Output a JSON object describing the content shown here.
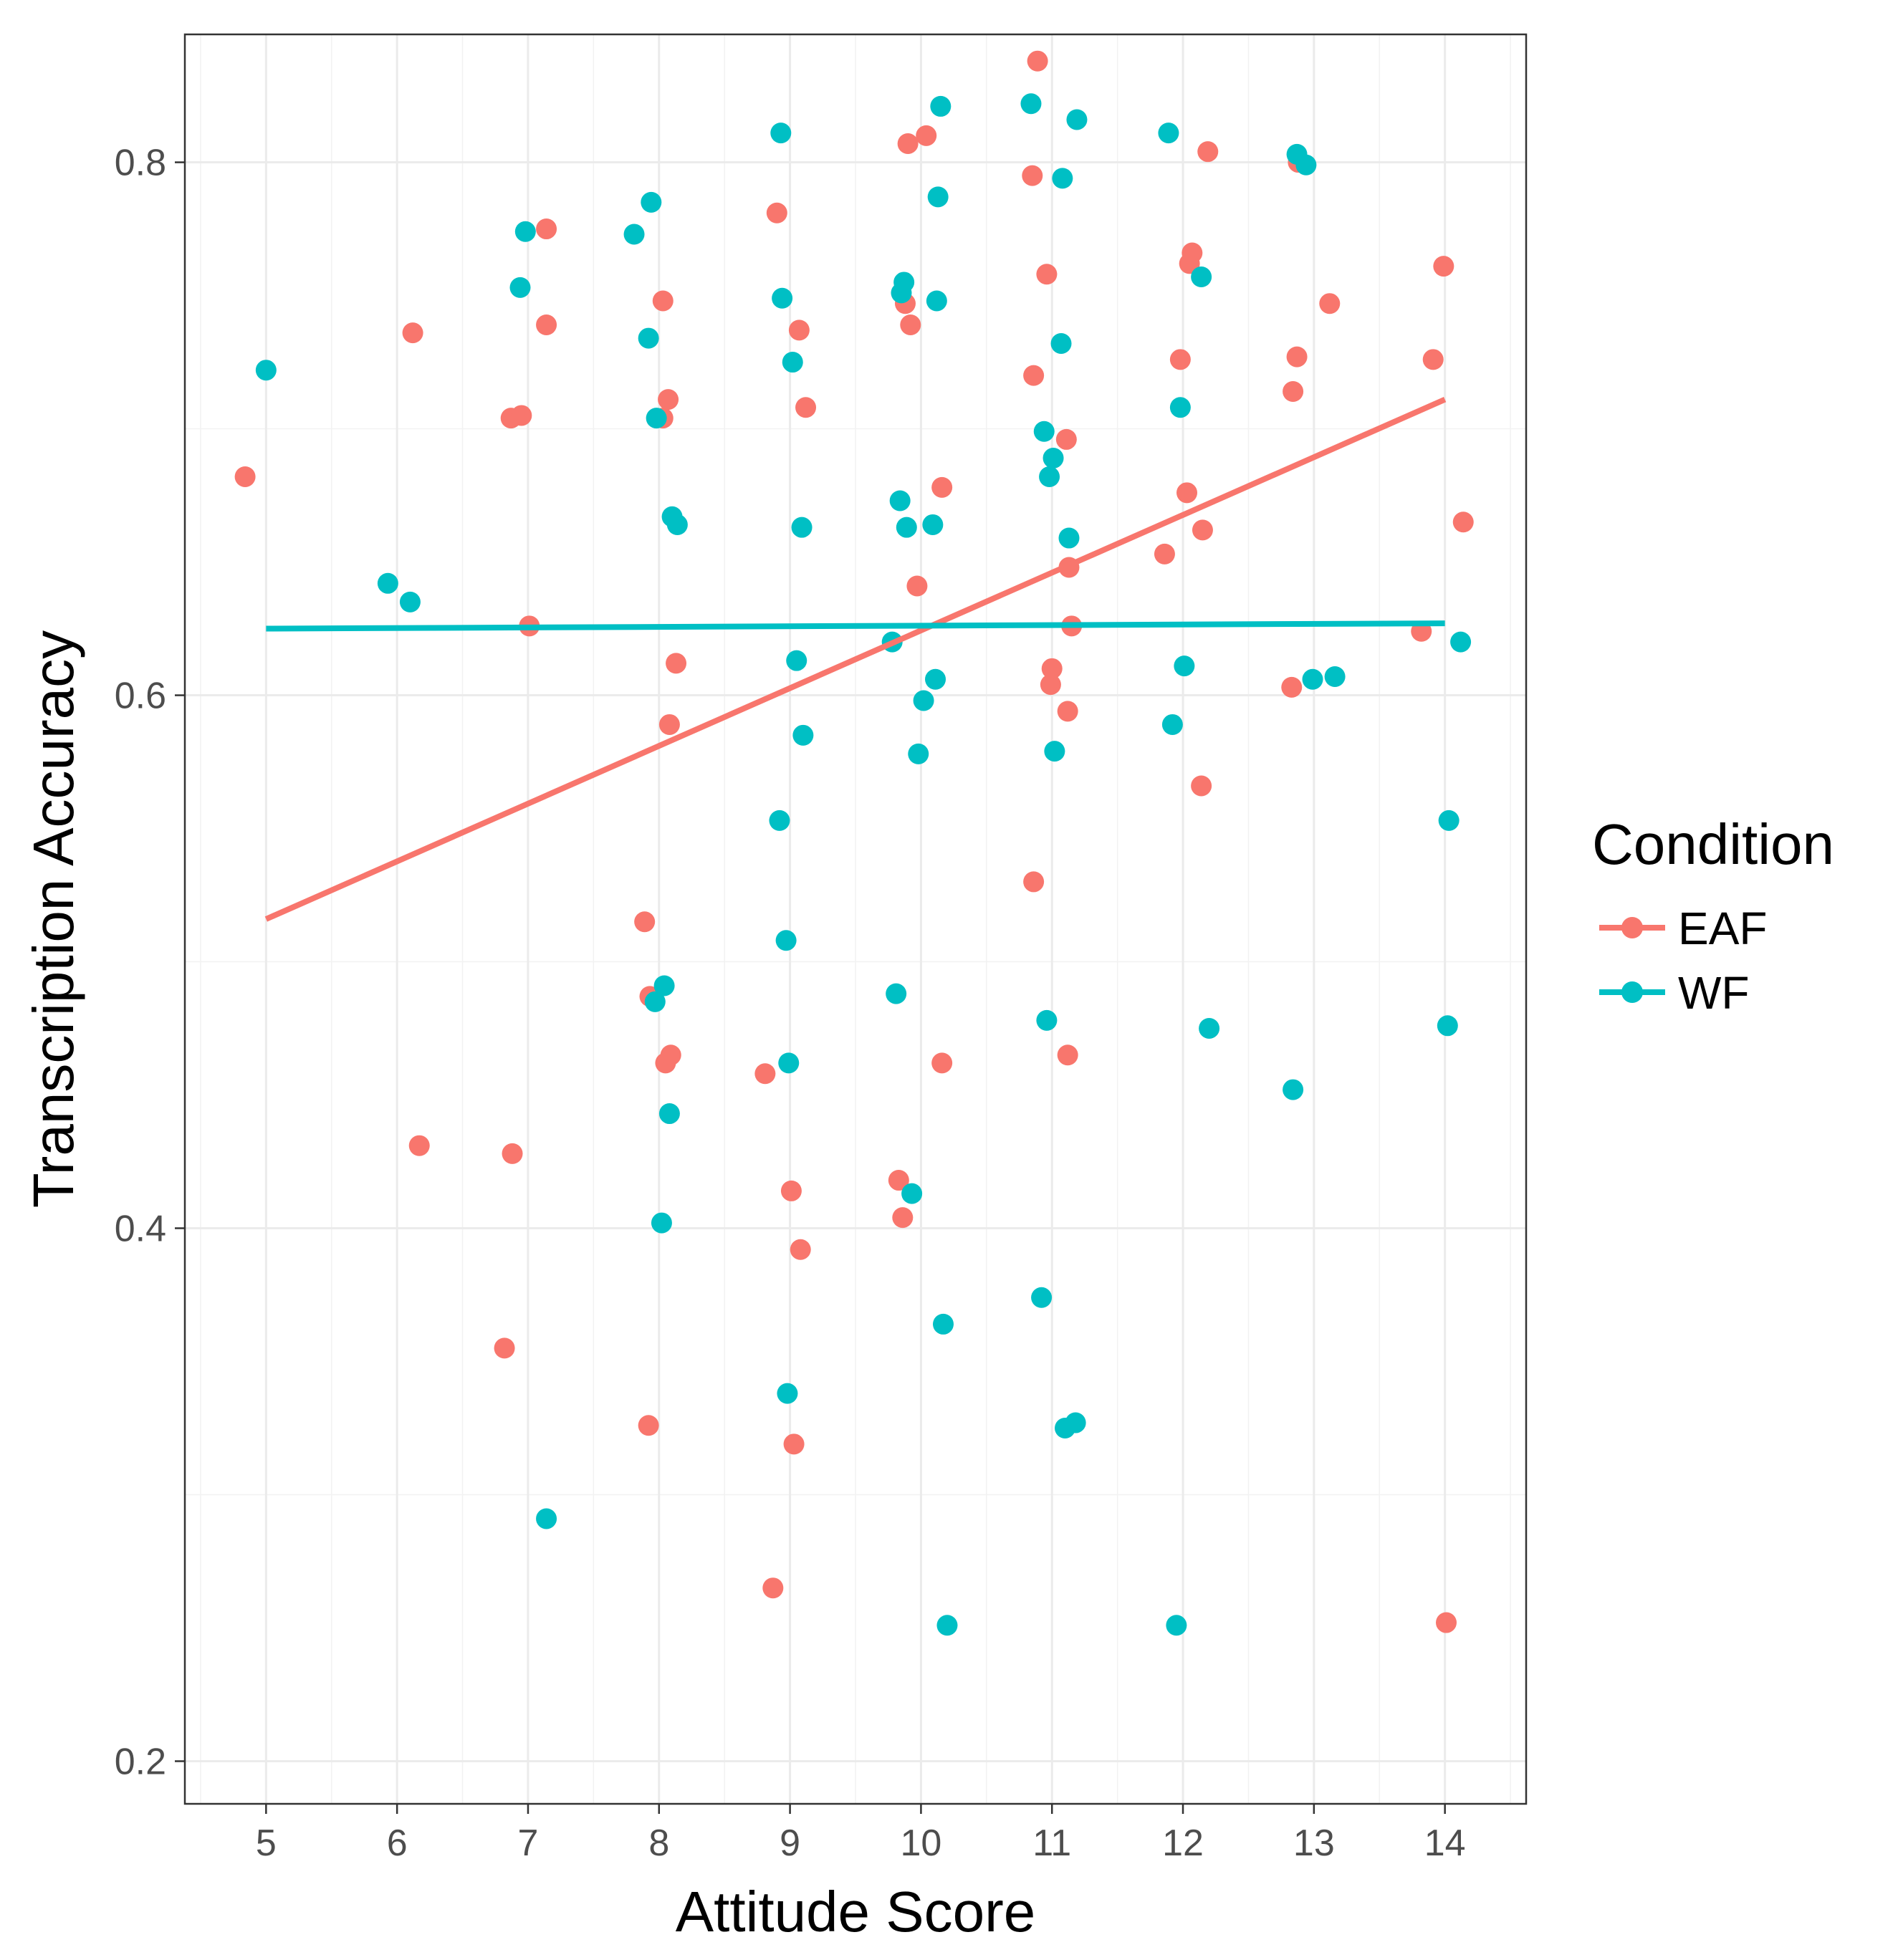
{
  "chart_data": {
    "type": "scatter",
    "title": "",
    "xlabel": "Attitude Score",
    "ylabel": "Transcription Accuracy",
    "xlim": [
      4.38,
      14.62
    ],
    "ylim": [
      0.184,
      0.848
    ],
    "x_ticks": [
      5,
      6,
      7,
      8,
      9,
      10,
      11,
      12,
      13,
      14
    ],
    "x_tick_labels": [
      "5",
      "6",
      "7",
      "8",
      "9",
      "10",
      "11",
      "12",
      "13",
      "14"
    ],
    "y_ticks": [
      0.2,
      0.4,
      0.6,
      0.8
    ],
    "y_tick_labels": [
      "0.2",
      "0.4",
      "0.6",
      "0.8"
    ],
    "y_minor_ticks": [
      0.3,
      0.5,
      0.7
    ],
    "grid": true,
    "legend": {
      "title": "Condition",
      "position": "right"
    },
    "series": [
      {
        "name": "EAF",
        "color": "#F8766D",
        "points": [
          [
            4.84,
            0.682
          ],
          [
            6.12,
            0.736
          ],
          [
            6.17,
            0.431
          ],
          [
            6.82,
            0.355
          ],
          [
            6.87,
            0.704
          ],
          [
            6.88,
            0.428
          ],
          [
            6.95,
            0.705
          ],
          [
            7.01,
            0.626
          ],
          [
            7.14,
            0.775
          ],
          [
            7.14,
            0.739
          ],
          [
            7.89,
            0.515
          ],
          [
            7.93,
            0.487
          ],
          [
            7.92,
            0.326
          ],
          [
            8.03,
            0.748
          ],
          [
            8.03,
            0.704
          ],
          [
            8.07,
            0.711
          ],
          [
            8.05,
            0.462
          ],
          [
            8.09,
            0.465
          ],
          [
            8.08,
            0.589
          ],
          [
            8.13,
            0.612
          ],
          [
            8.81,
            0.458
          ],
          [
            8.87,
            0.265
          ],
          [
            8.9,
            0.781
          ],
          [
            9.01,
            0.414
          ],
          [
            9.03,
            0.319
          ],
          [
            9.07,
            0.737
          ],
          [
            9.08,
            0.392
          ],
          [
            9.12,
            0.708
          ],
          [
            9.83,
            0.418
          ],
          [
            9.88,
            0.747
          ],
          [
            9.86,
            0.404
          ],
          [
            9.9,
            0.807
          ],
          [
            9.92,
            0.739
          ],
          [
            9.97,
            0.641
          ],
          [
            10.04,
            0.81
          ],
          [
            10.16,
            0.678
          ],
          [
            10.16,
            0.462
          ],
          [
            10.85,
            0.795
          ],
          [
            10.86,
            0.72
          ],
          [
            10.86,
            0.53
          ],
          [
            10.89,
            0.838
          ],
          [
            10.96,
            0.758
          ],
          [
            10.99,
            0.604
          ],
          [
            11.0,
            0.61
          ],
          [
            11.11,
            0.696
          ],
          [
            11.12,
            0.594
          ],
          [
            11.12,
            0.465
          ],
          [
            11.13,
            0.648
          ],
          [
            11.15,
            0.626
          ],
          [
            11.86,
            0.653
          ],
          [
            11.98,
            0.726
          ],
          [
            12.03,
            0.676
          ],
          [
            12.05,
            0.762
          ],
          [
            12.07,
            0.766
          ],
          [
            12.14,
            0.566
          ],
          [
            12.15,
            0.662
          ],
          [
            12.19,
            0.804
          ],
          [
            12.83,
            0.603
          ],
          [
            12.84,
            0.714
          ],
          [
            12.87,
            0.727
          ],
          [
            12.88,
            0.8
          ],
          [
            13.12,
            0.747
          ],
          [
            13.82,
            0.624
          ],
          [
            13.91,
            0.726
          ],
          [
            13.99,
            0.761
          ],
          [
            14.01,
            0.252
          ],
          [
            14.14,
            0.665
          ]
        ],
        "trend": {
          "x": [
            5,
            14
          ],
          "y": [
            0.516,
            0.711
          ]
        }
      },
      {
        "name": "WF",
        "color": "#00BFC4",
        "points": [
          [
            5.0,
            0.722
          ],
          [
            5.93,
            0.642
          ],
          [
            6.1,
            0.635
          ],
          [
            6.94,
            0.753
          ],
          [
            6.98,
            0.774
          ],
          [
            7.14,
            0.291
          ],
          [
            7.81,
            0.773
          ],
          [
            7.92,
            0.734
          ],
          [
            7.94,
            0.785
          ],
          [
            7.97,
            0.485
          ],
          [
            7.98,
            0.704
          ],
          [
            8.02,
            0.402
          ],
          [
            8.04,
            0.491
          ],
          [
            8.08,
            0.443
          ],
          [
            8.1,
            0.667
          ],
          [
            8.14,
            0.664
          ],
          [
            8.92,
            0.553
          ],
          [
            8.93,
            0.811
          ],
          [
            8.94,
            0.749
          ],
          [
            8.97,
            0.508
          ],
          [
            8.98,
            0.338
          ],
          [
            8.99,
            0.462
          ],
          [
            9.02,
            0.725
          ],
          [
            9.05,
            0.613
          ],
          [
            9.09,
            0.663
          ],
          [
            9.1,
            0.585
          ],
          [
            9.78,
            0.62
          ],
          [
            9.81,
            0.488
          ],
          [
            9.84,
            0.673
          ],
          [
            9.85,
            0.751
          ],
          [
            9.87,
            0.755
          ],
          [
            9.89,
            0.663
          ],
          [
            9.93,
            0.413
          ],
          [
            9.98,
            0.578
          ],
          [
            10.02,
            0.598
          ],
          [
            10.09,
            0.664
          ],
          [
            10.11,
            0.606
          ],
          [
            10.12,
            0.748
          ],
          [
            10.13,
            0.787
          ],
          [
            10.17,
            0.364
          ],
          [
            10.2,
            0.251
          ],
          [
            10.15,
            0.821
          ],
          [
            10.84,
            0.822
          ],
          [
            10.92,
            0.374
          ],
          [
            10.94,
            0.699
          ],
          [
            10.96,
            0.478
          ],
          [
            10.98,
            0.682
          ],
          [
            11.01,
            0.689
          ],
          [
            11.02,
            0.579
          ],
          [
            11.07,
            0.732
          ],
          [
            11.1,
            0.325
          ],
          [
            11.08,
            0.794
          ],
          [
            11.13,
            0.659
          ],
          [
            11.18,
            0.327
          ],
          [
            11.19,
            0.816
          ],
          [
            11.89,
            0.811
          ],
          [
            11.92,
            0.589
          ],
          [
            11.95,
            0.251
          ],
          [
            11.98,
            0.708
          ],
          [
            12.01,
            0.611
          ],
          [
            12.14,
            0.757
          ],
          [
            12.2,
            0.475
          ],
          [
            12.84,
            0.452
          ],
          [
            12.87,
            0.803
          ],
          [
            12.94,
            0.799
          ],
          [
            12.99,
            0.606
          ],
          [
            13.16,
            0.607
          ],
          [
            14.02,
            0.476
          ],
          [
            14.03,
            0.553
          ],
          [
            14.12,
            0.62
          ]
        ],
        "trend": {
          "x": [
            5,
            14
          ],
          "y": [
            0.625,
            0.627
          ]
        }
      }
    ]
  }
}
